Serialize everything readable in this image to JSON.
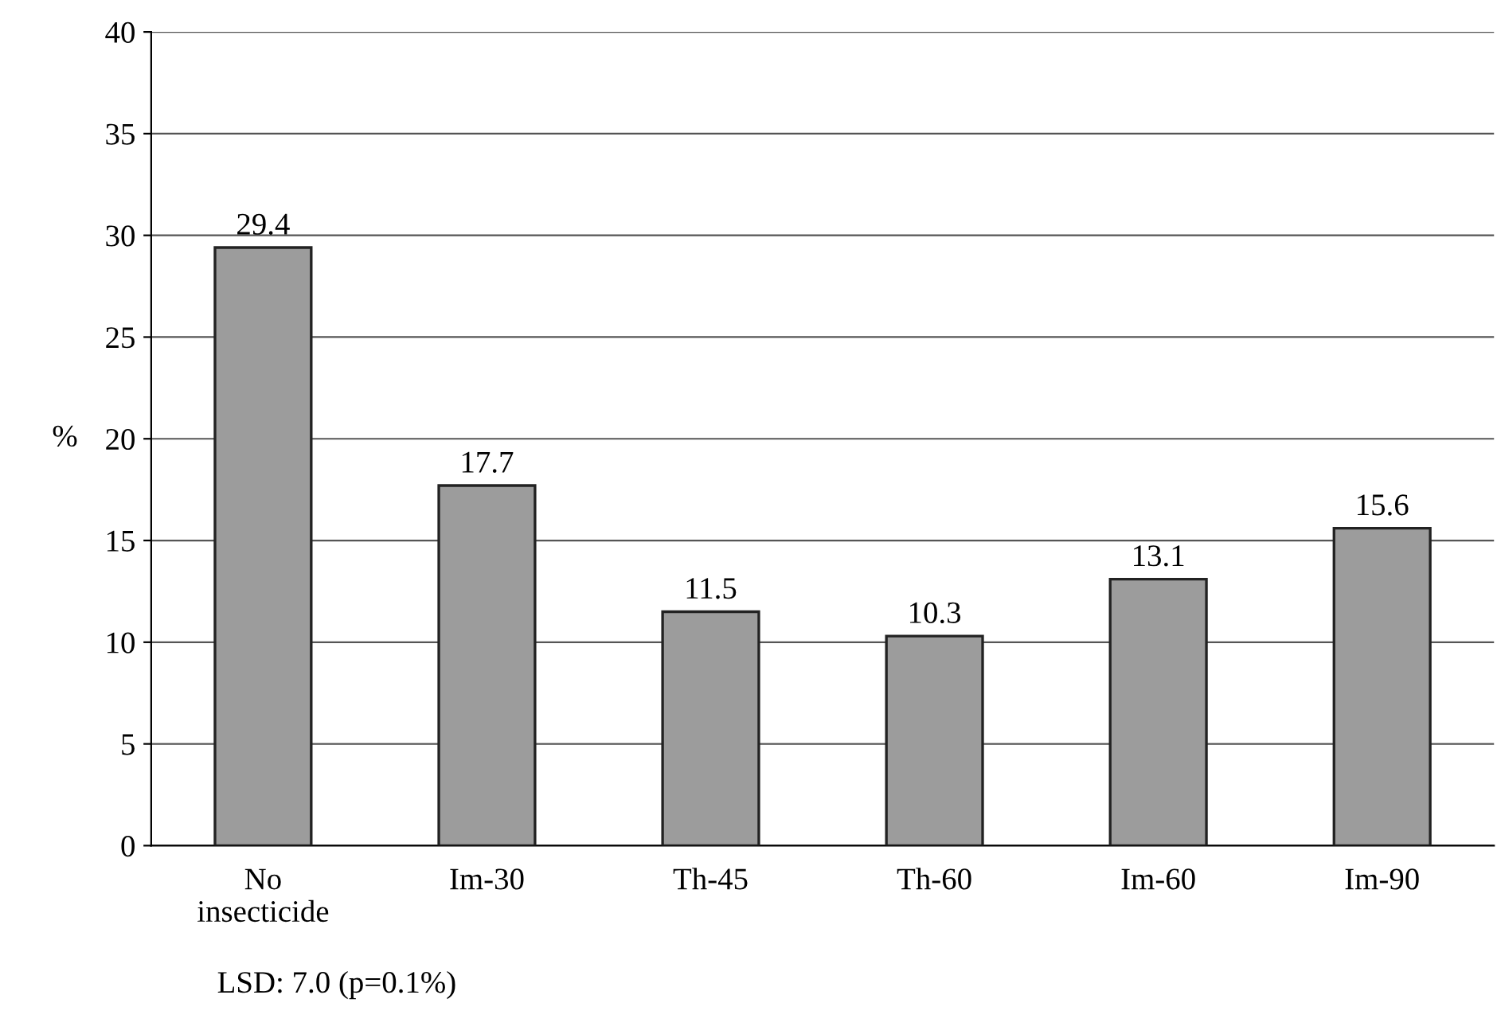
{
  "chart_data": {
    "type": "bar",
    "ylabel": "%",
    "categories": [
      "No\ninsecticide",
      "Im-30",
      "Th-45",
      "Th-60",
      "Im-60",
      "Im-90"
    ],
    "values": [
      29.4,
      17.7,
      11.5,
      10.3,
      13.1,
      15.6
    ],
    "color": "#9c9c9c",
    "ylim": [
      0,
      40
    ],
    "yticks": [
      0,
      5,
      10,
      15,
      20,
      25,
      30,
      35,
      40
    ],
    "grid": "y",
    "data_labels": true,
    "annotations": [
      "LSD: 7.0 (p=0.1%)"
    ]
  }
}
